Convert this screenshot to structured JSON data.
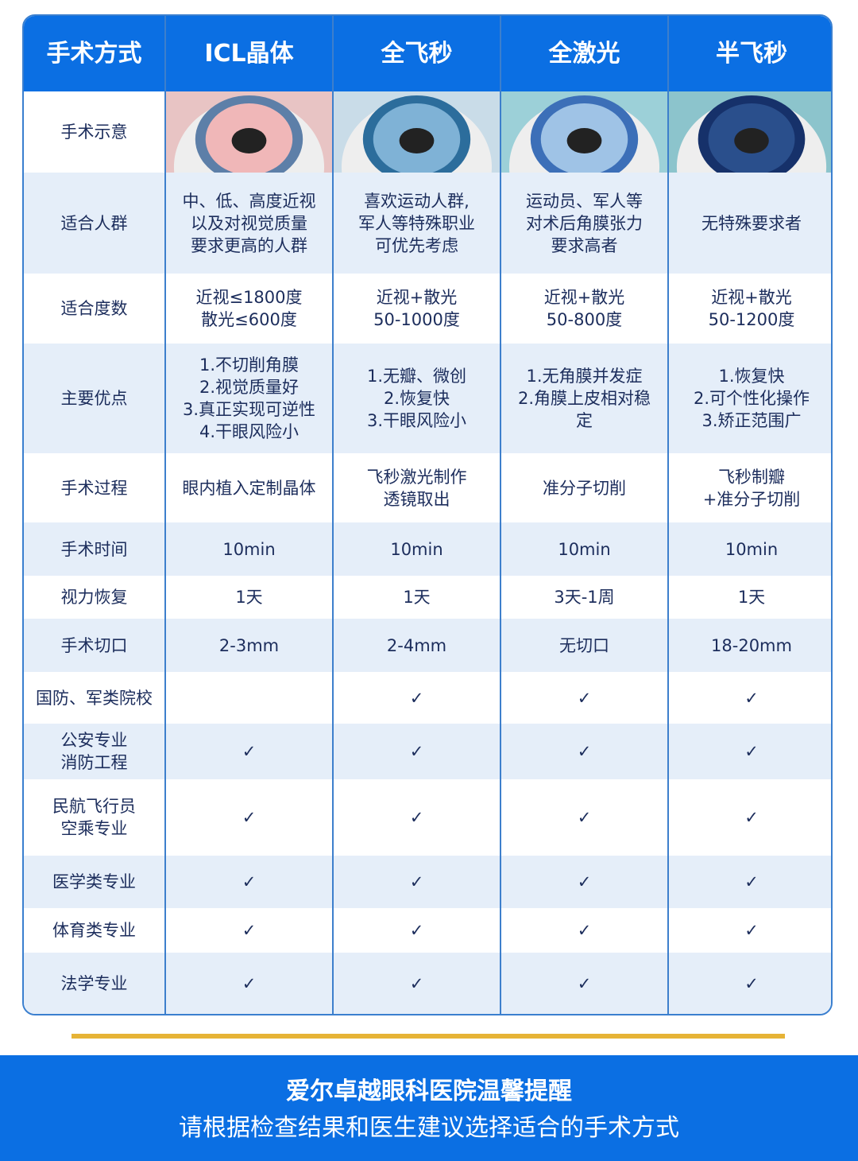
{
  "header": [
    "手术方式",
    "ICL晶体",
    "全飞秒",
    "全激光",
    "半飞秒"
  ],
  "image_row_label": "手术示意",
  "rows": [
    {
      "label": "适合人群",
      "cells": [
        "中、低、高度近视\n以及对视觉质量\n要求更高的人群",
        "喜欢运动人群,\n军人等特殊职业\n可优先考虑",
        "运动员、军人等\n对术后角膜张力\n要求高者",
        "无特殊要求者"
      ]
    },
    {
      "label": "适合度数",
      "cells": [
        "近视≤1800度\n散光≤600度",
        "近视+散光\n50-1000度",
        "近视+散光\n50-800度",
        "近视+散光\n50-1200度"
      ]
    },
    {
      "label": "主要优点",
      "cells": [
        "1.不切削角膜\n2.视觉质量好\n3.真正实现可逆性\n4.干眼风险小",
        "1.无瓣、微创\n2.恢复快\n3.干眼风险小",
        "1.无角膜并发症\n2.角膜上皮相对稳\n定",
        "1.恢复快\n2.可个性化操作\n3.矫正范围广"
      ]
    },
    {
      "label": "手术过程",
      "cells": [
        "眼内植入定制晶体",
        "飞秒激光制作\n透镜取出",
        "准分子切削",
        "飞秒制瓣\n+准分子切削"
      ]
    },
    {
      "label": "手术时间",
      "cells": [
        "10min",
        "10min",
        "10min",
        "10min"
      ]
    },
    {
      "label": "视力恢复",
      "cells": [
        "1天",
        "1天",
        "3天-1周",
        "1天"
      ]
    },
    {
      "label": "手术切口",
      "cells": [
        "2-3mm",
        "2-4mm",
        "无切口",
        "18-20mm"
      ]
    },
    {
      "label": "国防、军类院校",
      "cells": [
        "",
        "✓",
        "✓",
        "✓"
      ]
    },
    {
      "label": "公安专业\n消防工程",
      "cells": [
        "✓",
        "✓",
        "✓",
        "✓"
      ]
    },
    {
      "label": "民航飞行员\n空乘专业",
      "cells": [
        "✓",
        "✓",
        "✓",
        "✓"
      ]
    },
    {
      "label": "医学类专业",
      "cells": [
        "✓",
        "✓",
        "✓",
        "✓"
      ]
    },
    {
      "label": "体育类专业",
      "cells": [
        "✓",
        "✓",
        "✓",
        "✓"
      ]
    },
    {
      "label": "法学专业",
      "cells": [
        "✓",
        "✓",
        "✓",
        "✓"
      ]
    }
  ],
  "footer": {
    "title": "爱尔卓越眼科医院温馨提醒",
    "subtitle": "请根据检查结果和医生建议选择适合的手术方式"
  },
  "colors": {
    "header": "#0b6fe3",
    "accent_line": "#e6b336",
    "row_alt": "#e5eef9"
  }
}
